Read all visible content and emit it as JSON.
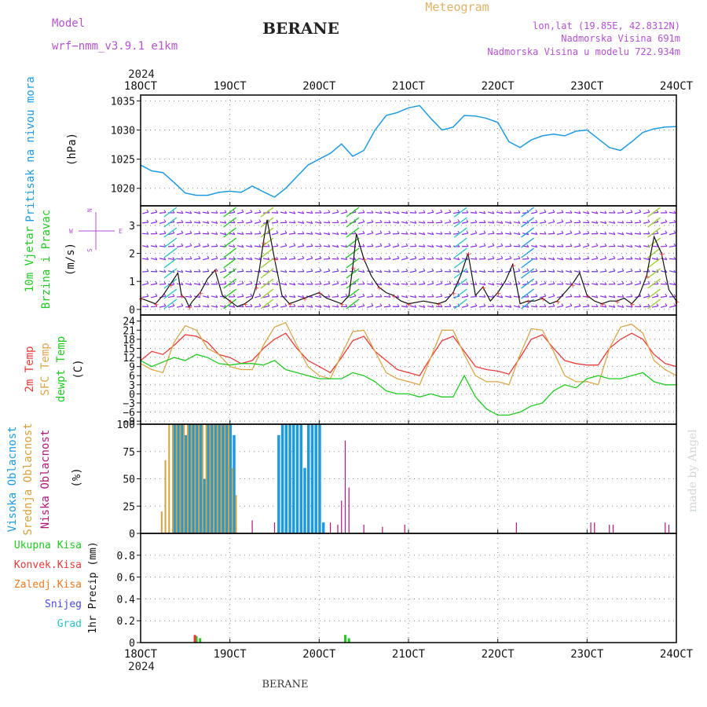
{
  "header": {
    "model_label": "Model",
    "model_name": "wrf−nmm_v3.9.1  e1km",
    "title": "BERANE",
    "meteogram": "Meteogram",
    "lonlat": "lon,lat (19.85E, 42.8312N)",
    "altitude": "Nadmorska Visina 691m",
    "model_altitude": "Nadmorska Visina u modelu 722.934m",
    "year_top": "2024",
    "year_bottom": "2024",
    "footer": "BERANE",
    "watermark": "made by Angel"
  },
  "colors": {
    "pressure": "#1e9be0",
    "temp_2m": "#e83a3a",
    "temp_sfc": "#dba54b",
    "dewpoint": "#22c922",
    "cloud_high": "#1e9be0",
    "cloud_mid": "#d9a13a",
    "cloud_low": "#b0177c",
    "precip_total": "#22c922",
    "precip_conv": "#e83a3a",
    "precip_frz": "#f07a22",
    "snow": "#4a4ae0",
    "hail": "#2ac3c3",
    "label_purple": "#b452d4",
    "grid": "#888888"
  },
  "chart_data": [
    {
      "type": "line",
      "panel": "pressure",
      "ylabel": [
        "Pritisak na nivou mora",
        "(hPa)"
      ],
      "ylim": [
        1017,
        1036
      ],
      "yticks": [
        "1020",
        "1025",
        "1030",
        "1035"
      ],
      "x_ticks": [
        "18OCT",
        "19OCT",
        "20OCT",
        "21OCT",
        "22OCT",
        "23OCT",
        "24OCT"
      ],
      "xlim": [
        0,
        144
      ],
      "series": [
        {
          "x": [
            0,
            3,
            6,
            9,
            12,
            15,
            18,
            21,
            24,
            27,
            30,
            33,
            36,
            39,
            42,
            45,
            48,
            51,
            54,
            57,
            60,
            63,
            66,
            69,
            72,
            75,
            78,
            81,
            84,
            87,
            90,
            93,
            96,
            99,
            102,
            105,
            108,
            111,
            114,
            117,
            120,
            123,
            126,
            129,
            132,
            135,
            138,
            141,
            144
          ],
          "values": [
            1024,
            1023,
            1022.7,
            1021,
            1019.2,
            1018.8,
            1018.8,
            1019.3,
            1019.5,
            1019.3,
            1020.4,
            1019.4,
            1018.5,
            1020,
            1022,
            1024,
            1025,
            1026,
            1027.6,
            1025.5,
            1026.5,
            1030,
            1032.5,
            1033,
            1033.8,
            1034.2,
            1032,
            1030,
            1030.5,
            1032.5,
            1032.4,
            1032,
            1031.3,
            1028,
            1027,
            1028.3,
            1029,
            1029.3,
            1029,
            1029.8,
            1030,
            1028.5,
            1027,
            1026.5,
            1028,
            1029.6,
            1030.2,
            1030.5,
            1030.6
          ]
        }
      ]
    },
    {
      "type": "line",
      "panel": "wind",
      "ylabel": [
        "10m Vjetar",
        "Brzina i Pravac",
        "(m/s)"
      ],
      "compass": {
        "n": "N",
        "s": "S",
        "e": "E",
        "w": "W"
      },
      "ylim": [
        -0.2,
        3.7
      ],
      "yticks": [
        "0",
        "1",
        "2",
        "3"
      ],
      "series": [
        {
          "name": "speed",
          "x": [
            0,
            2,
            4,
            6,
            8,
            10,
            11,
            12,
            13,
            14,
            16,
            18,
            20,
            22,
            24,
            26,
            28,
            30,
            31,
            32,
            33,
            34,
            36,
            38,
            40,
            42,
            44,
            46,
            48,
            50,
            54,
            56,
            57,
            58,
            60,
            62,
            64,
            66,
            68,
            70,
            72,
            76,
            80,
            82,
            84,
            86,
            88,
            90,
            92,
            94,
            96,
            98,
            100,
            102,
            104,
            106,
            108,
            110,
            112,
            114,
            116,
            118,
            120,
            122,
            124,
            126,
            128,
            130,
            132,
            134,
            136,
            138,
            140,
            142,
            144
          ],
          "values": [
            0.4,
            0.3,
            0.2,
            0.5,
            0.9,
            1.3,
            0.5,
            0.4,
            0.1,
            0.3,
            0.6,
            1.1,
            1.4,
            0.5,
            0.3,
            0.1,
            0.2,
            0.4,
            0.8,
            1.5,
            2.4,
            3.2,
            1.8,
            0.5,
            0.2,
            0.3,
            0.4,
            0.5,
            0.6,
            0.4,
            0.2,
            0.5,
            1.5,
            2.7,
            1.8,
            1.2,
            0.8,
            0.6,
            0.5,
            0.3,
            0.2,
            0.3,
            0.2,
            0.3,
            0.6,
            1.2,
            2.0,
            0.5,
            0.8,
            0.3,
            0.6,
            1.0,
            1.6,
            0.2,
            0.3,
            0.3,
            0.4,
            0.2,
            0.3,
            0.6,
            0.9,
            1.3,
            0.5,
            0.3,
            0.2,
            0.3,
            0.3,
            0.4,
            0.2,
            0.5,
            1.2,
            2.6,
            2.0,
            0.7,
            0.3
          ]
        }
      ]
    },
    {
      "type": "line",
      "panel": "temperature",
      "ylabel": [
        "2m Temp",
        "SFC Temp",
        "dewpt Temp",
        "(C)"
      ],
      "ylim": [
        -10,
        26
      ],
      "yticks": [
        "24",
        "21",
        "18",
        "15",
        "12",
        "9",
        "6",
        "3",
        "0",
        "−3",
        "−6",
        "−9"
      ],
      "series": [
        {
          "name": "2m Temp",
          "x": [
            0,
            3,
            6,
            9,
            12,
            15,
            18,
            21,
            24,
            27,
            30,
            33,
            36,
            39,
            42,
            45,
            48,
            51,
            54,
            57,
            60,
            63,
            66,
            69,
            72,
            75,
            78,
            81,
            84,
            87,
            90,
            93,
            96,
            99,
            102,
            105,
            108,
            111,
            114,
            117,
            120,
            123,
            126,
            129,
            132,
            135,
            138,
            141,
            144
          ],
          "values": [
            11,
            14,
            13,
            16,
            19.5,
            19,
            17,
            13,
            12,
            10,
            11,
            15,
            18,
            20,
            15,
            11,
            9,
            7,
            12,
            17.5,
            19,
            14,
            11,
            8,
            7,
            6,
            12,
            17.5,
            19,
            14,
            9,
            8,
            7.5,
            6.5,
            12,
            18,
            19.5,
            15,
            11,
            10,
            9.5,
            9.5,
            15,
            18,
            20,
            18,
            13,
            10,
            9
          ]
        },
        {
          "name": "SFC Temp",
          "x": [
            0,
            3,
            6,
            9,
            12,
            15,
            18,
            21,
            24,
            27,
            30,
            33,
            36,
            39,
            42,
            45,
            48,
            51,
            54,
            57,
            60,
            63,
            66,
            69,
            72,
            75,
            78,
            81,
            84,
            87,
            90,
            93,
            96,
            99,
            102,
            105,
            108,
            111,
            114,
            117,
            120,
            123,
            126,
            129,
            132,
            135,
            138,
            141,
            144
          ],
          "values": [
            10,
            8,
            7,
            17,
            22.5,
            21,
            15,
            13,
            9,
            8,
            8,
            16,
            22,
            23.5,
            16,
            9,
            6,
            5,
            13,
            20.5,
            21,
            14,
            7,
            5,
            4,
            3,
            12,
            21,
            21,
            13,
            6,
            4,
            4,
            3,
            13,
            21.5,
            21,
            14,
            6,
            4,
            4,
            3,
            15,
            22,
            23,
            20,
            11,
            8,
            6
          ]
        },
        {
          "name": "dewpt Temp",
          "x": [
            0,
            3,
            6,
            9,
            12,
            15,
            18,
            21,
            24,
            27,
            30,
            33,
            36,
            39,
            42,
            45,
            48,
            51,
            54,
            57,
            60,
            63,
            66,
            69,
            72,
            75,
            78,
            81,
            84,
            87,
            90,
            93,
            96,
            99,
            102,
            105,
            108,
            111,
            114,
            117,
            120,
            123,
            126,
            129,
            132,
            135,
            138,
            141,
            144
          ],
          "values": [
            11,
            9,
            10.5,
            12,
            11,
            13,
            12,
            10,
            9.5,
            10,
            10,
            9.5,
            11,
            8,
            7,
            6,
            5,
            5,
            5,
            7,
            6,
            4,
            1,
            0,
            0,
            -1,
            0,
            -1,
            -1,
            6,
            -1,
            -5,
            -7,
            -7,
            -6,
            -4,
            -3,
            1,
            3,
            2,
            5,
            6,
            5,
            5,
            6,
            7,
            4,
            3,
            3
          ]
        }
      ]
    },
    {
      "type": "bar",
      "panel": "clouds",
      "ylabel": [
        "Visoka Oblacnost",
        "Srednja Oblacnost",
        "Niska Oblacnost",
        "(%)"
      ],
      "ylim": [
        0,
        100
      ],
      "yticks": [
        "100",
        "75",
        "50",
        "25",
        "0"
      ],
      "series": [
        {
          "name": "Visoka Oblacnost",
          "x": [
            9,
            10,
            11,
            12,
            13,
            14,
            15,
            16,
            17,
            18,
            19,
            20,
            21,
            22,
            23,
            24,
            25,
            37,
            38,
            39,
            40,
            41,
            42,
            43,
            44,
            45,
            46,
            47,
            48,
            49
          ],
          "values": [
            100,
            100,
            100,
            90,
            100,
            100,
            100,
            100,
            50,
            100,
            100,
            100,
            100,
            100,
            100,
            100,
            90,
            90,
            100,
            100,
            100,
            100,
            100,
            100,
            60,
            100,
            100,
            100,
            100,
            10
          ]
        },
        {
          "name": "Srednja Oblacnost",
          "x": [
            6,
            7,
            8,
            9,
            10,
            11,
            12,
            13,
            14,
            15,
            16,
            17,
            18,
            19,
            20,
            21,
            22,
            23,
            24,
            25,
            26
          ],
          "values": [
            20,
            67,
            100,
            100,
            100,
            100,
            100,
            100,
            100,
            100,
            100,
            100,
            100,
            100,
            100,
            100,
            100,
            100,
            100,
            60,
            35
          ]
        },
        {
          "name": "Niska Oblacnost",
          "x": [
            30,
            36,
            51,
            53,
            54,
            55,
            56,
            60,
            65,
            71,
            101,
            121,
            122,
            126,
            127,
            141,
            142
          ],
          "values": [
            12,
            10,
            10,
            8,
            30,
            85,
            42,
            8,
            6,
            8,
            10,
            10,
            10,
            8,
            8,
            10,
            8
          ]
        }
      ]
    },
    {
      "type": "bar",
      "panel": "precip",
      "ylabel": [
        "1hr Precip (mm)"
      ],
      "legend": [
        "Ukupna Kisa",
        "Konvek.Kisa",
        "Zaledj.Kisa",
        "Snijeg",
        "Grad"
      ],
      "ylim": [
        0,
        1
      ],
      "yticks": [
        "0.8",
        "0.6",
        "0.4",
        "0.2",
        "0"
      ],
      "series": [
        {
          "name": "Ukupna Kisa",
          "x": [
            15,
            16,
            55,
            56
          ],
          "values": [
            0.06,
            0.04,
            0.07,
            0.04
          ]
        },
        {
          "name": "Konvek.Kisa",
          "x": [
            15
          ],
          "values": [
            0.07
          ]
        }
      ]
    }
  ]
}
